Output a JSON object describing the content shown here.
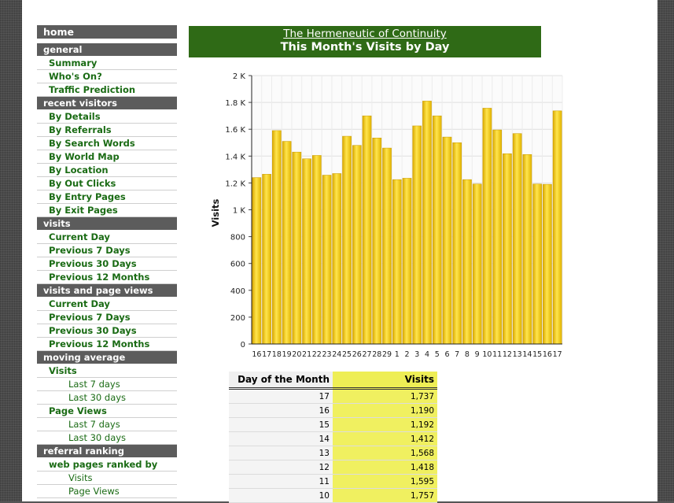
{
  "nav": {
    "home": "home",
    "sections": [
      {
        "title": "general",
        "items": [
          {
            "label": "Summary"
          },
          {
            "label": "Who's On?"
          },
          {
            "label": "Traffic Prediction"
          }
        ]
      },
      {
        "title": "recent visitors",
        "items": [
          {
            "label": "By Details"
          },
          {
            "label": "By Referrals"
          },
          {
            "label": "By Search Words"
          },
          {
            "label": "By World Map"
          },
          {
            "label": "By Location"
          },
          {
            "label": "By Out Clicks"
          },
          {
            "label": "By Entry Pages"
          },
          {
            "label": "By Exit Pages"
          }
        ]
      },
      {
        "title": "visits",
        "items": [
          {
            "label": "Current Day"
          },
          {
            "label": "Previous 7 Days"
          },
          {
            "label": "Previous 30 Days"
          },
          {
            "label": "Previous 12 Months"
          }
        ]
      },
      {
        "title": "visits and page views",
        "items": [
          {
            "label": "Current Day"
          },
          {
            "label": "Previous 7 Days"
          },
          {
            "label": "Previous 30 Days"
          },
          {
            "label": "Previous 12 Months"
          }
        ]
      },
      {
        "title": "moving average",
        "items": [
          {
            "label": "Visits"
          },
          {
            "label": "Last 7 days",
            "sub": true
          },
          {
            "label": "Last 30 days",
            "sub": true
          },
          {
            "label": "Page Views"
          },
          {
            "label": "Last 7 days",
            "sub": true
          },
          {
            "label": "Last 30 days",
            "sub": true
          }
        ]
      },
      {
        "title": "referral ranking",
        "items": [
          {
            "label": "web pages ranked by"
          },
          {
            "label": "Visits",
            "sub": true
          },
          {
            "label": "Page Views",
            "sub": true
          }
        ]
      }
    ]
  },
  "header": {
    "site_link": "The Hermeneutic of Continuity",
    "title": "This Month's Visits by Day"
  },
  "chart_data": {
    "type": "bar",
    "ylabel": "Visits",
    "ylim": [
      0,
      2000
    ],
    "yticks": [
      0,
      200,
      400,
      600,
      800,
      1000,
      1200,
      1400,
      1600,
      1800,
      2000
    ],
    "ytick_labels": [
      "0",
      "200",
      "400",
      "600",
      "800",
      "1 K",
      "1.2 K",
      "1.4 K",
      "1.6 K",
      "1.8 K",
      "2 K"
    ],
    "grid": true,
    "bar_color": "#f2c200",
    "categories": [
      "16",
      "17",
      "18",
      "19",
      "20",
      "21",
      "22",
      "23",
      "24",
      "25",
      "26",
      "27",
      "28",
      "29",
      "1",
      "2",
      "3",
      "4",
      "5",
      "6",
      "7",
      "8",
      "9",
      "10",
      "11",
      "12",
      "13",
      "14",
      "15",
      "16",
      "17"
    ],
    "values": [
      1240,
      1265,
      1590,
      1510,
      1430,
      1380,
      1405,
      1258,
      1270,
      1548,
      1480,
      1700,
      1535,
      1460,
      1225,
      1235,
      1625,
      1810,
      1700,
      1542,
      1500,
      1225,
      1192,
      1757,
      1595,
      1418,
      1568,
      1412,
      1192,
      1190,
      1737
    ]
  },
  "table": {
    "headers": [
      "Day of the Month",
      "Visits"
    ],
    "rows": [
      [
        "17",
        "1,737"
      ],
      [
        "16",
        "1,190"
      ],
      [
        "15",
        "1,192"
      ],
      [
        "14",
        "1,412"
      ],
      [
        "13",
        "1,568"
      ],
      [
        "12",
        "1,418"
      ],
      [
        "11",
        "1,595"
      ],
      [
        "10",
        "1,757"
      ]
    ]
  }
}
